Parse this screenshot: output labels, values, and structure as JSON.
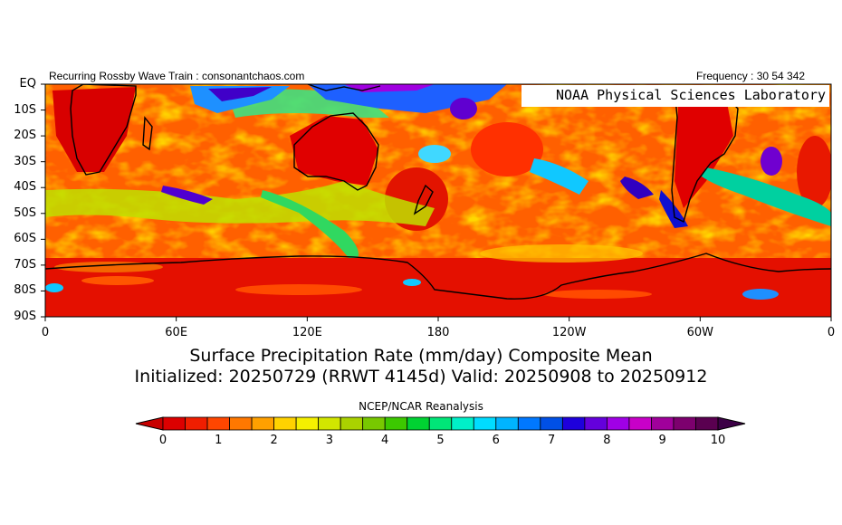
{
  "header": {
    "left_label": "Recurring Rossby Wave Train : consonantchaos.com",
    "right_label": "Frequency : 30 54 342",
    "credit": "NOAA Physical Sciences Laboratory"
  },
  "map": {
    "lat_labels": [
      "EQ",
      "10S",
      "20S",
      "30S",
      "40S",
      "50S",
      "60S",
      "70S",
      "80S",
      "90S"
    ],
    "lon_labels": [
      "0",
      "60E",
      "120E",
      "180",
      "120W",
      "60W",
      "0"
    ],
    "lon_label_values": [
      0,
      60,
      120,
      180,
      240,
      300,
      360
    ],
    "lat_range": [
      -90,
      0
    ],
    "lon_range": [
      0,
      360
    ]
  },
  "titles": {
    "line1": "Surface Precipitation Rate (mm/day) Composite Mean",
    "line2": "Initialized: 20250729 (RRWT 4145d) Valid: 20250908 to 20250912"
  },
  "source": "NCEP/NCAR Reanalysis",
  "colorbar": {
    "tick_labels": [
      "0",
      "1",
      "2",
      "3",
      "4",
      "5",
      "6",
      "7",
      "8",
      "9",
      "10"
    ],
    "tick_values": [
      0,
      1,
      2,
      3,
      4,
      5,
      6,
      7,
      8,
      9,
      10
    ],
    "colors": [
      "#dc0000",
      "#f01e00",
      "#ff4600",
      "#ff7800",
      "#ffa000",
      "#ffd200",
      "#f5f000",
      "#d2e600",
      "#aad200",
      "#78c800",
      "#3cc800",
      "#00d232",
      "#00e678",
      "#00f0c8",
      "#00dcff",
      "#00b4ff",
      "#0078ff",
      "#0050e6",
      "#1e00dc",
      "#6400dc",
      "#a000e6",
      "#c800c8",
      "#a0009b",
      "#7d006e",
      "#5a0050"
    ],
    "over_color": "#3c0046",
    "under_color": "#c80000"
  }
}
